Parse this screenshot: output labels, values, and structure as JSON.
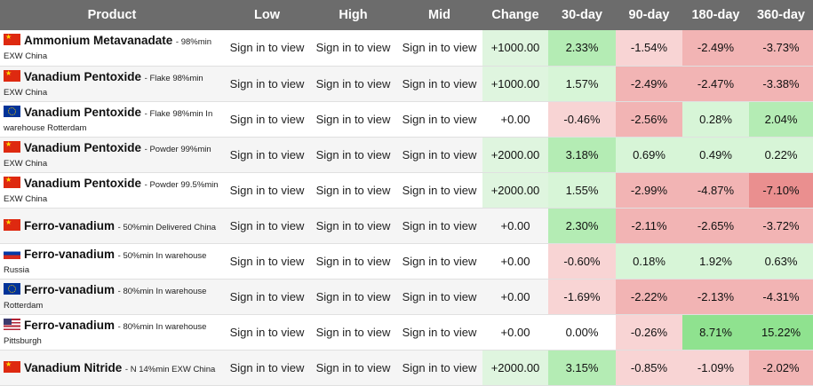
{
  "headers": [
    "Product",
    "Low",
    "High",
    "Mid",
    "Change",
    "30-day",
    "90-day",
    "180-day",
    "360-day"
  ],
  "signin_label": "Sign in to view",
  "colors": {
    "header_bg": "#6c6c6c",
    "positive_light": "#d7f5d7",
    "positive_mid": "#b4ecb4",
    "positive_strong": "#8fe28f",
    "negative_light": "#f8d4d4",
    "negative_mid": "#f2b4b4",
    "negative_strong": "#ea8f8f",
    "change_bg": "#dff5df"
  },
  "rows": [
    {
      "flag": "cn",
      "flag_icon": "china-flag-icon",
      "name": "Ammonium Metavanadate",
      "desc": "- 98%min EXW China",
      "change": "+1000.00",
      "d30": "2.33%",
      "d90": "-1.54%",
      "d180": "-2.49%",
      "d360": "-3.73%"
    },
    {
      "flag": "cn",
      "flag_icon": "china-flag-icon",
      "name": "Vanadium Pentoxide",
      "desc": "- Flake 98%min EXW China",
      "change": "+1000.00",
      "d30": "1.57%",
      "d90": "-2.49%",
      "d180": "-2.47%",
      "d360": "-3.38%"
    },
    {
      "flag": "eu",
      "flag_icon": "eu-flag-icon",
      "name": "Vanadium Pentoxide",
      "desc": "- Flake 98%min In warehouse Rotterdam",
      "change": "+0.00",
      "d30": "-0.46%",
      "d90": "-2.56%",
      "d180": "0.28%",
      "d360": "2.04%"
    },
    {
      "flag": "cn",
      "flag_icon": "china-flag-icon",
      "name": "Vanadium Pentoxide",
      "desc": "- Powder 99%min EXW China",
      "change": "+2000.00",
      "d30": "3.18%",
      "d90": "0.69%",
      "d180": "0.49%",
      "d360": "0.22%"
    },
    {
      "flag": "cn",
      "flag_icon": "china-flag-icon",
      "name": "Vanadium Pentoxide",
      "desc": "- Powder 99.5%min EXW China",
      "change": "+2000.00",
      "d30": "1.55%",
      "d90": "-2.99%",
      "d180": "-4.87%",
      "d360": "-7.10%"
    },
    {
      "flag": "cn",
      "flag_icon": "china-flag-icon",
      "name": "Ferro-vanadium",
      "desc": "- 50%min Delivered China",
      "change": "+0.00",
      "d30": "2.30%",
      "d90": "-2.11%",
      "d180": "-2.65%",
      "d360": "-3.72%"
    },
    {
      "flag": "ru",
      "flag_icon": "russia-flag-icon",
      "name": "Ferro-vanadium",
      "desc": "- 50%min In warehouse Russia",
      "change": "+0.00",
      "d30": "-0.60%",
      "d90": "0.18%",
      "d180": "1.92%",
      "d360": "0.63%"
    },
    {
      "flag": "eu",
      "flag_icon": "eu-flag-icon",
      "name": "Ferro-vanadium",
      "desc": "- 80%min In warehouse Rotterdam",
      "change": "+0.00",
      "d30": "-1.69%",
      "d90": "-2.22%",
      "d180": "-2.13%",
      "d360": "-4.31%"
    },
    {
      "flag": "us",
      "flag_icon": "usa-flag-icon",
      "name": "Ferro-vanadium",
      "desc": "- 80%min In warehouse Pittsburgh",
      "change": "+0.00",
      "d30": "0.00%",
      "d90": "-0.26%",
      "d180": "8.71%",
      "d360": "15.22%"
    },
    {
      "flag": "cn",
      "flag_icon": "china-flag-icon",
      "name": "Vanadium Nitride",
      "desc": "- N 14%min EXW China",
      "change": "+2000.00",
      "d30": "3.15%",
      "d90": "-0.85%",
      "d180": "-1.09%",
      "d360": "-2.02%"
    }
  ]
}
